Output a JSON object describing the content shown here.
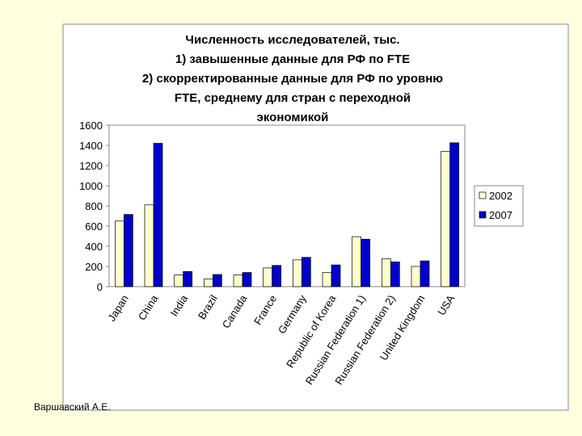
{
  "chart_data": {
    "type": "bar",
    "title": [
      "Численность исследователей, тыс.",
      "1) завышенные данные для РФ по FTE",
      "2) скорректированные данные для РФ по уровню",
      "FTE, среднему для стран с переходной",
      "экономикой"
    ],
    "categories": [
      "Japan",
      "China",
      "India",
      "Brazil",
      "Canada",
      "France",
      "Germany",
      "Republic of Korea",
      "Russian Federation 1)",
      "Russian Federation 2)",
      "United Kingdom",
      "USA"
    ],
    "series": [
      {
        "name": "2002",
        "color": "#ffffcc",
        "values": [
          650,
          810,
          115,
          75,
          115,
          185,
          265,
          140,
          495,
          275,
          200,
          1340
        ]
      },
      {
        "name": "2007",
        "color": "#0000cc",
        "values": [
          715,
          1420,
          150,
          120,
          140,
          210,
          290,
          215,
          470,
          245,
          255,
          1425
        ]
      }
    ],
    "ylim": [
      0,
      1600
    ],
    "yticks": [
      0,
      200,
      400,
      600,
      800,
      1000,
      1200,
      1400,
      1600
    ],
    "legend": "right"
  },
  "footer": "Варшавский А.Е."
}
